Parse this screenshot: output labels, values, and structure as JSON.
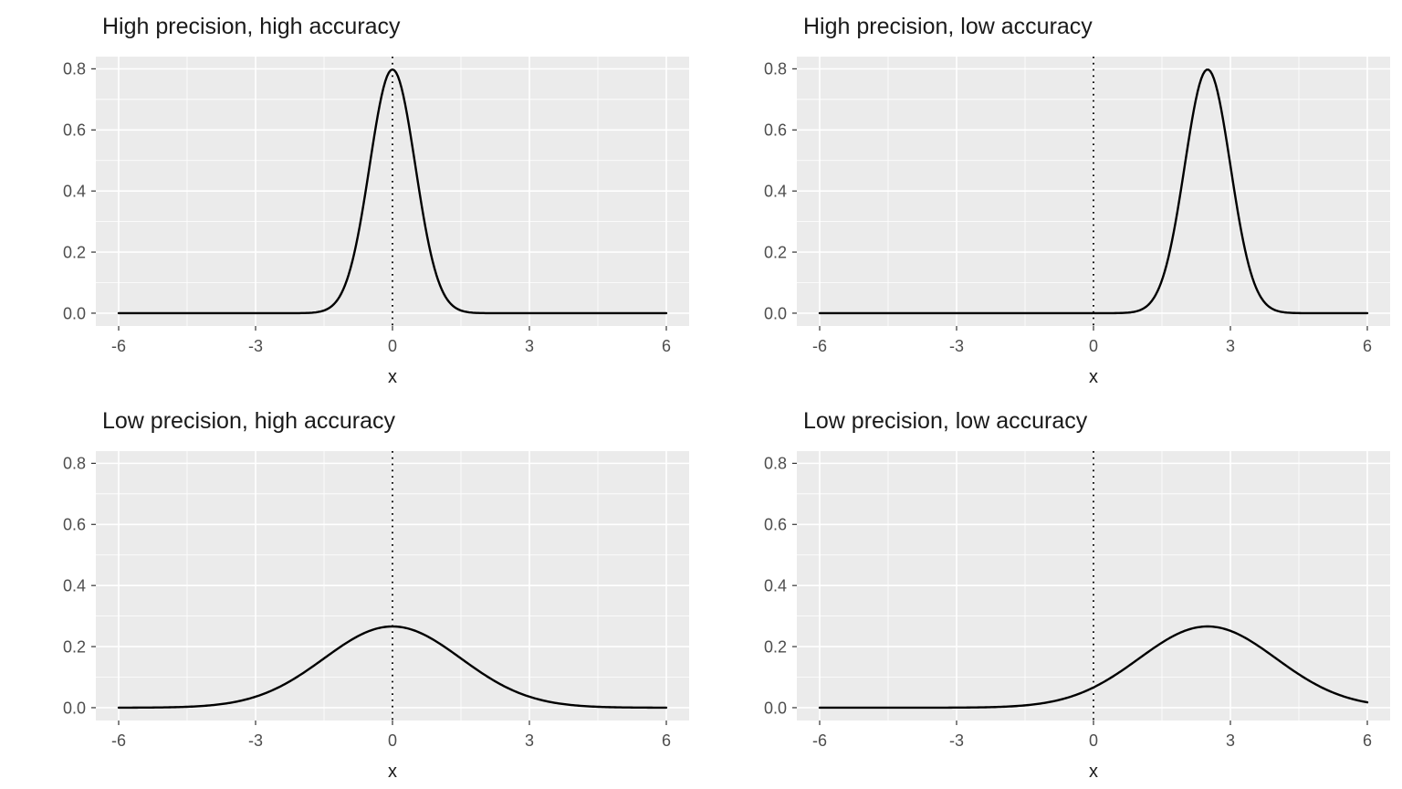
{
  "figure": {
    "background": "#FFFFFF"
  },
  "style": {
    "panel_background": "#EBEBEB",
    "grid_color": "#FFFFFF",
    "curve_color": "#000000",
    "reference_line_color": "#000000",
    "tick_mark_color": "#333333",
    "tick_label_color": "#4D4D4D",
    "axis_title_color": "#1A1A1A",
    "title_color": "#1A1A1A"
  },
  "chart_data": [
    {
      "type": "line",
      "title": "High precision, high accuracy",
      "xlabel": "x",
      "ylabel": "",
      "xlim": [
        -6.5,
        6.5
      ],
      "ylim": [
        -0.042,
        0.84
      ],
      "x_ticks": [
        -6,
        -3,
        0,
        3,
        6
      ],
      "x_tick_labels": [
        "-6",
        "-3",
        "0",
        "3",
        "6"
      ],
      "y_ticks": [
        0,
        0.2,
        0.4,
        0.6,
        0.8
      ],
      "y_tick_labels": [
        "0.0",
        "0.2",
        "0.4",
        "0.6",
        "0.8"
      ],
      "x_minor_ticks": [
        -4.5,
        -1.5,
        1.5,
        4.5
      ],
      "y_minor_ticks": [
        0.1,
        0.3,
        0.5,
        0.7
      ],
      "grid": true,
      "legend": "none",
      "reference_line_x": 0,
      "series": [
        {
          "name": "normal-density",
          "distribution": "normal",
          "mean": 0,
          "sd": 0.5,
          "peak_y": 0.798,
          "x_range": [
            -6,
            6
          ]
        }
      ]
    },
    {
      "type": "line",
      "title": "High precision, low accuracy",
      "xlabel": "x",
      "ylabel": "",
      "xlim": [
        -6.5,
        6.5
      ],
      "ylim": [
        -0.042,
        0.84
      ],
      "x_ticks": [
        -6,
        -3,
        0,
        3,
        6
      ],
      "x_tick_labels": [
        "-6",
        "-3",
        "0",
        "3",
        "6"
      ],
      "y_ticks": [
        0,
        0.2,
        0.4,
        0.6,
        0.8
      ],
      "y_tick_labels": [
        "0.0",
        "0.2",
        "0.4",
        "0.6",
        "0.8"
      ],
      "x_minor_ticks": [
        -4.5,
        -1.5,
        1.5,
        4.5
      ],
      "y_minor_ticks": [
        0.1,
        0.3,
        0.5,
        0.7
      ],
      "grid": true,
      "legend": "none",
      "reference_line_x": 0,
      "series": [
        {
          "name": "normal-density",
          "distribution": "normal",
          "mean": 2.5,
          "sd": 0.5,
          "peak_y": 0.798,
          "x_range": [
            -6,
            6
          ]
        }
      ]
    },
    {
      "type": "line",
      "title": "Low precision, high accuracy",
      "xlabel": "x",
      "ylabel": "",
      "xlim": [
        -6.5,
        6.5
      ],
      "ylim": [
        -0.042,
        0.84
      ],
      "x_ticks": [
        -6,
        -3,
        0,
        3,
        6
      ],
      "x_tick_labels": [
        "-6",
        "-3",
        "0",
        "3",
        "6"
      ],
      "y_ticks": [
        0,
        0.2,
        0.4,
        0.6,
        0.8
      ],
      "y_tick_labels": [
        "0.0",
        "0.2",
        "0.4",
        "0.6",
        "0.8"
      ],
      "x_minor_ticks": [
        -4.5,
        -1.5,
        1.5,
        4.5
      ],
      "y_minor_ticks": [
        0.1,
        0.3,
        0.5,
        0.7
      ],
      "grid": true,
      "legend": "none",
      "reference_line_x": 0,
      "series": [
        {
          "name": "normal-density",
          "distribution": "normal",
          "mean": 0,
          "sd": 1.5,
          "peak_y": 0.266,
          "x_range": [
            -6,
            6
          ]
        }
      ]
    },
    {
      "type": "line",
      "title": "Low precision, low accuracy",
      "xlabel": "x",
      "ylabel": "",
      "xlim": [
        -6.5,
        6.5
      ],
      "ylim": [
        -0.042,
        0.84
      ],
      "x_ticks": [
        -6,
        -3,
        0,
        3,
        6
      ],
      "x_tick_labels": [
        "-6",
        "-3",
        "0",
        "3",
        "6"
      ],
      "y_ticks": [
        0,
        0.2,
        0.4,
        0.6,
        0.8
      ],
      "y_tick_labels": [
        "0.0",
        "0.2",
        "0.4",
        "0.6",
        "0.8"
      ],
      "x_minor_ticks": [
        -4.5,
        -1.5,
        1.5,
        4.5
      ],
      "y_minor_ticks": [
        0.1,
        0.3,
        0.5,
        0.7
      ],
      "grid": true,
      "legend": "none",
      "reference_line_x": 0,
      "series": [
        {
          "name": "normal-density",
          "distribution": "normal",
          "mean": 2.5,
          "sd": 1.5,
          "peak_y": 0.266,
          "x_range": [
            -6,
            6
          ]
        }
      ]
    }
  ]
}
